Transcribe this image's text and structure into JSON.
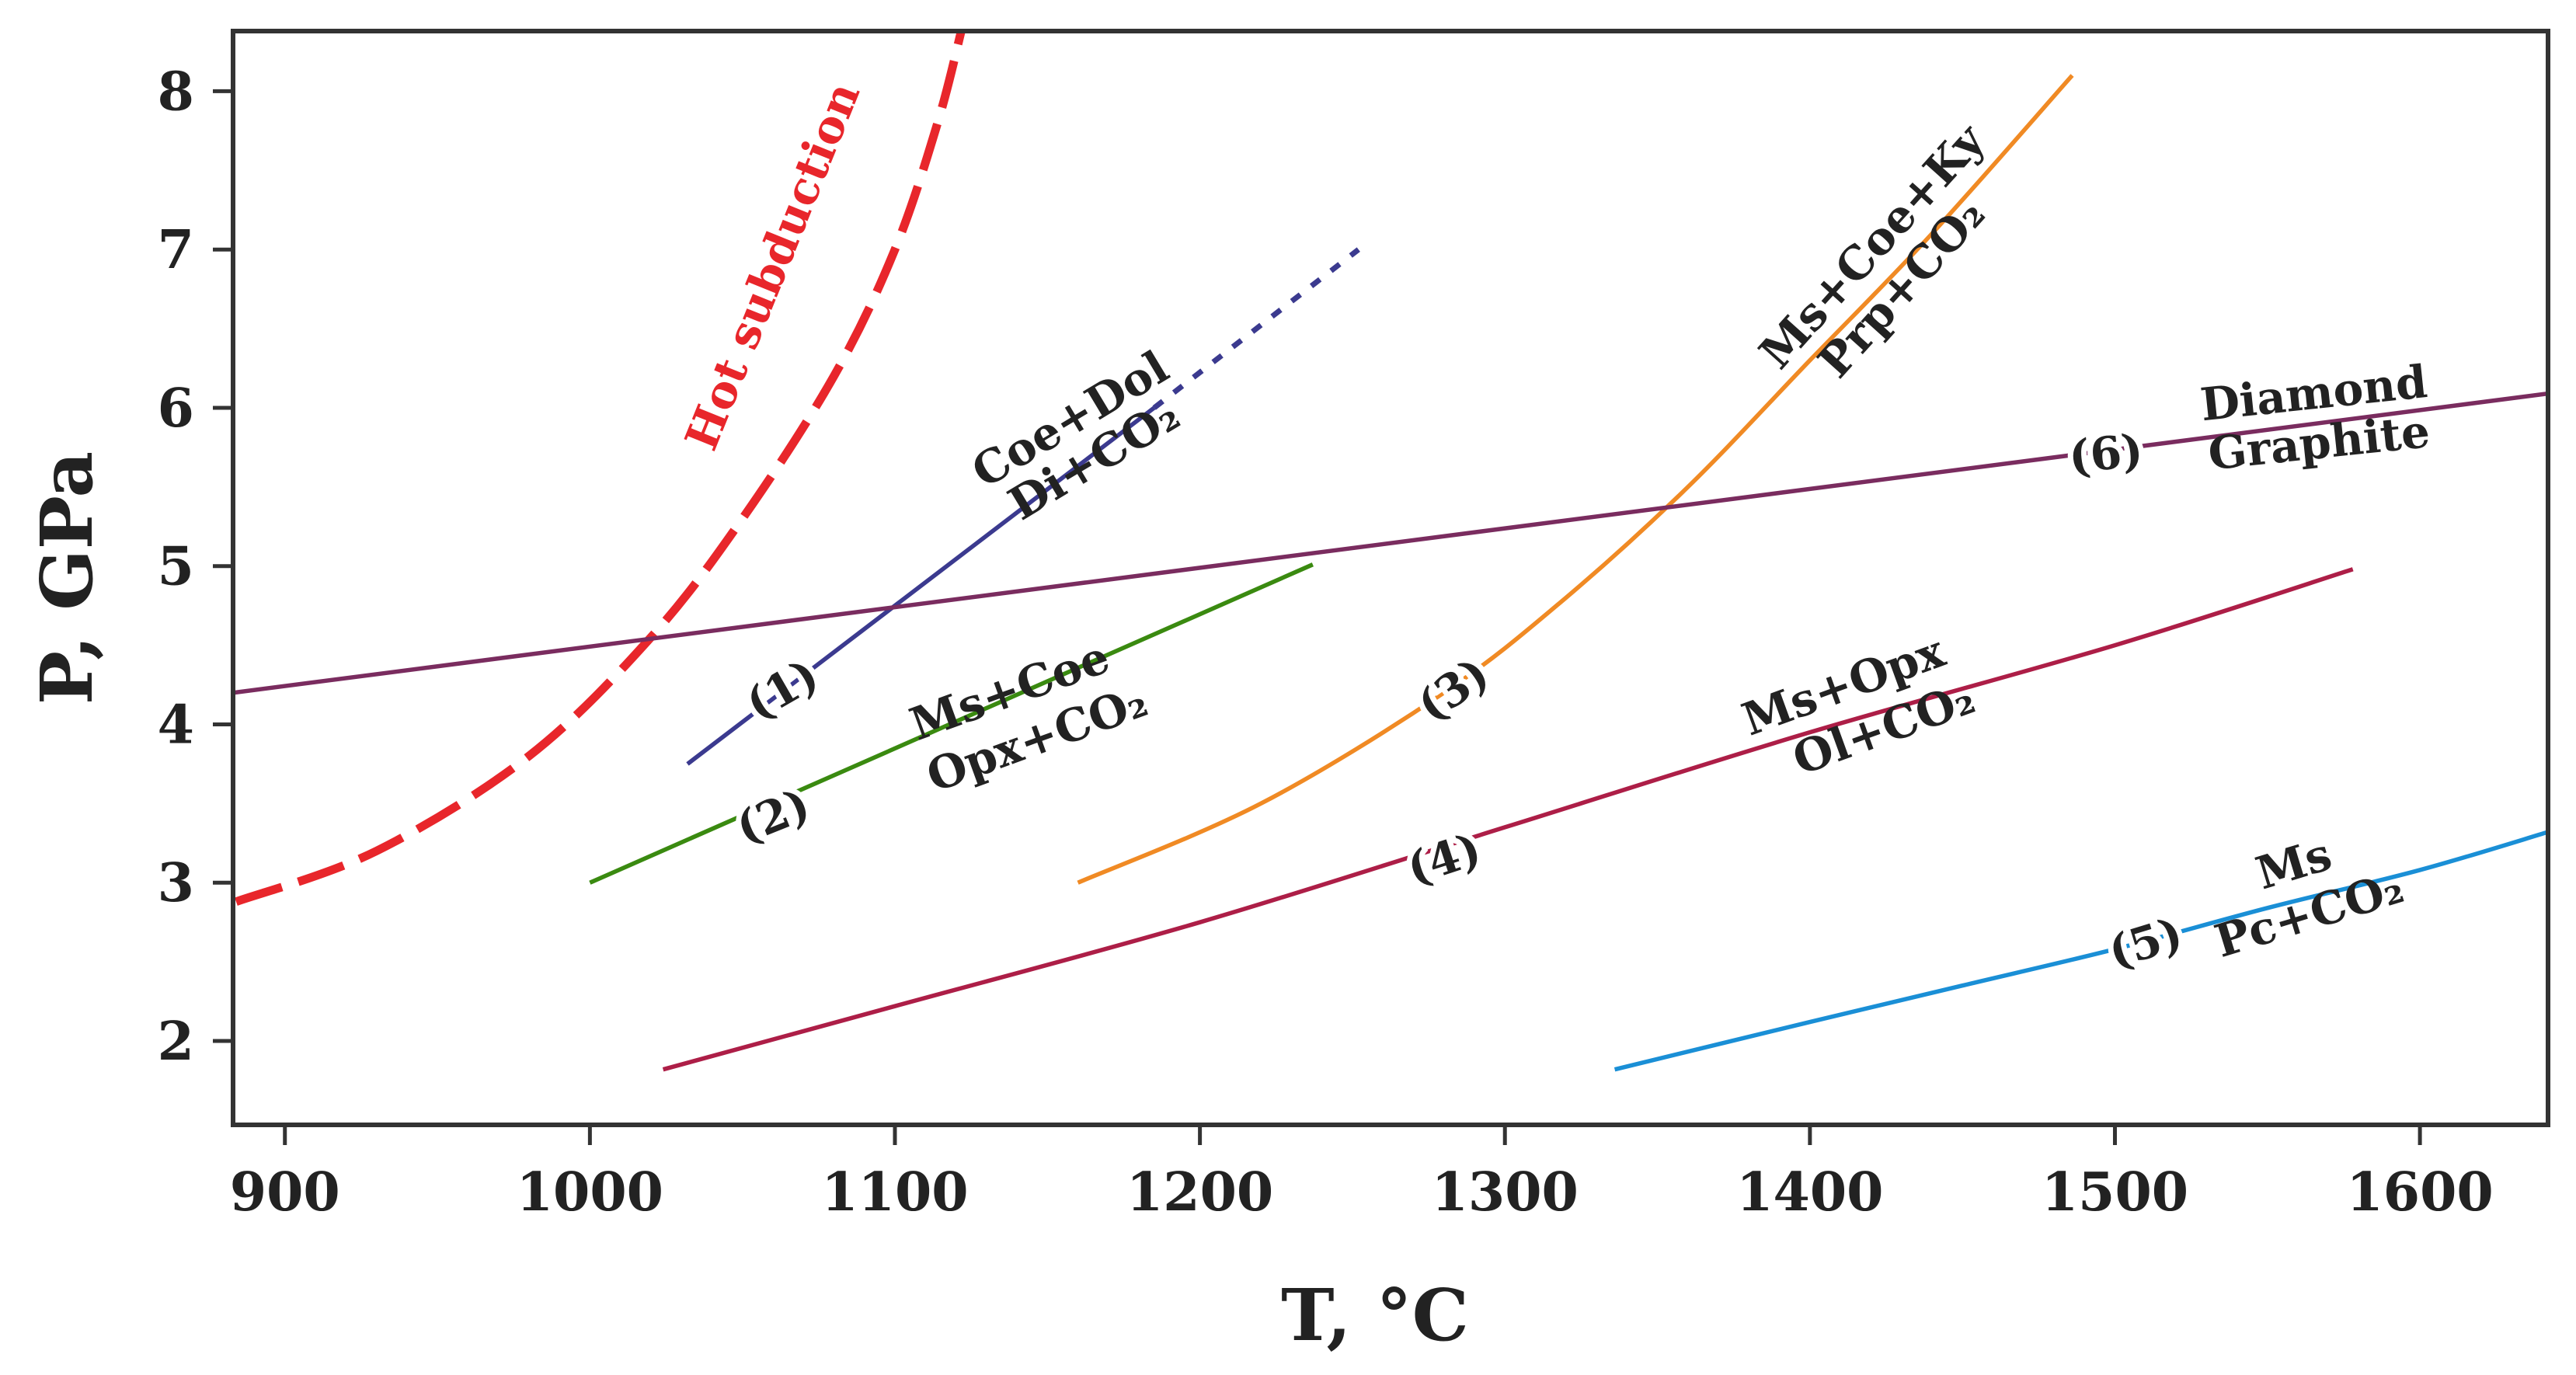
{
  "chart_data": {
    "type": "line",
    "title": "",
    "xlabel": "T, °C",
    "ylabel": "P, GPa",
    "xlim": [
      883,
      1642
    ],
    "ylim": [
      1.47,
      8.38
    ],
    "xticks": [
      900,
      1000,
      1100,
      1200,
      1300,
      1400,
      1500,
      1600
    ],
    "yticks": [
      2,
      3,
      4,
      5,
      6,
      7,
      8
    ],
    "grid": false,
    "series": [
      {
        "id": "hot",
        "name": "Hot subduction",
        "color": "#e8262b",
        "style": "dashed",
        "x": [
          884,
          930,
          980,
          1020,
          1050,
          1080,
          1100,
          1114,
          1122
        ],
        "y": [
          2.88,
          3.2,
          3.8,
          4.55,
          5.3,
          6.2,
          7.0,
          7.8,
          8.4
        ],
        "labels": [
          "Hot subduction"
        ]
      },
      {
        "id": "r1",
        "name": "(1)",
        "color": "#3b3a8f",
        "style": "solid",
        "x": [
          1032,
          1185
        ],
        "y": [
          3.75,
          6.0
        ],
        "ext_x": [
          1185,
          1252
        ],
        "ext_y": [
          6.0,
          7.0
        ],
        "labels": [
          "Coe+Dol",
          "Di+CO₂"
        ]
      },
      {
        "id": "r2",
        "name": "(2)",
        "color": "#3a8a10",
        "style": "solid",
        "x": [
          1000,
          1237
        ],
        "y": [
          3.0,
          5.01
        ],
        "labels": [
          "Ms+Coe",
          "Opx+CO₂"
        ]
      },
      {
        "id": "r3",
        "name": "(3)",
        "color": "#f08a24",
        "style": "solid",
        "x": [
          1160,
          1220,
          1280,
          1320,
          1360,
          1400,
          1440,
          1486
        ],
        "y": [
          3.0,
          3.5,
          4.2,
          4.8,
          5.5,
          6.3,
          7.1,
          8.1
        ],
        "labels": [
          "Ms+Coe+Ky",
          "Prp+CO₂"
        ]
      },
      {
        "id": "r4",
        "name": "(4)",
        "color": "#ad1e47",
        "style": "solid",
        "x": [
          1024,
          1100,
          1200,
          1300,
          1400,
          1500,
          1578
        ],
        "y": [
          1.82,
          2.22,
          2.75,
          3.35,
          3.95,
          4.5,
          4.98
        ],
        "labels": [
          "Ms+Opx",
          "Ol+CO₂"
        ]
      },
      {
        "id": "r5",
        "name": "(5)",
        "color": "#1a8fd6",
        "style": "solid",
        "x": [
          1336,
          1400,
          1450,
          1500,
          1550,
          1600,
          1642
        ],
        "y": [
          1.82,
          2.12,
          2.35,
          2.58,
          2.84,
          3.08,
          3.32
        ],
        "labels": [
          "Ms",
          "Pc+CO₂"
        ]
      },
      {
        "id": "r6",
        "name": "(6)",
        "color": "#7a2c5f",
        "style": "solid",
        "x": [
          883,
          1642
        ],
        "y": [
          4.2,
          6.09
        ],
        "labels": [
          "Diamond",
          "Graphite"
        ]
      }
    ]
  }
}
